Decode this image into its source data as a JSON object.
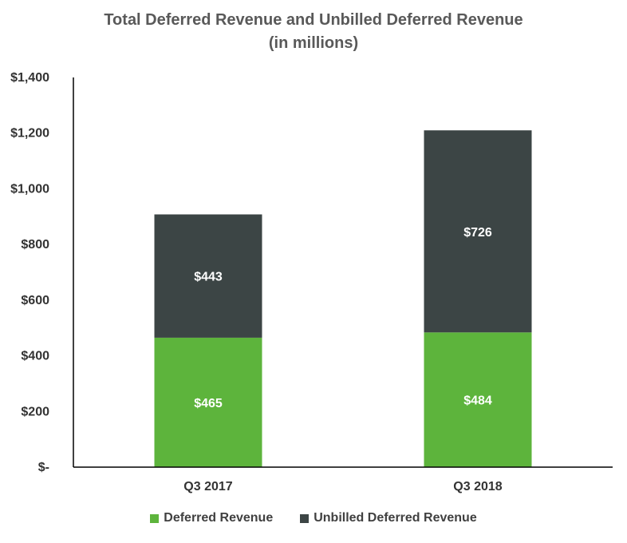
{
  "chart_data": {
    "type": "bar",
    "stacked": true,
    "title": "Total Deferred Revenue and Unbilled Deferred Revenue",
    "subtitle": "(in millions)",
    "categories": [
      "Q3 2017",
      "Q3 2018"
    ],
    "series": [
      {
        "name": "Deferred Revenue",
        "values": [
          465,
          484
        ],
        "labels": [
          "$465",
          "$484"
        ],
        "color": "#5db43c"
      },
      {
        "name": "Unbilled Deferred Revenue",
        "values": [
          443,
          726
        ],
        "labels": [
          "$443",
          "$726"
        ],
        "color": "#3c4545"
      }
    ],
    "ylim": [
      0,
      1400
    ],
    "yticks": [
      0,
      200,
      400,
      600,
      800,
      1000,
      1200,
      1400
    ],
    "ytick_labels": [
      "$-",
      "$200",
      "$400",
      "$600",
      "$800",
      "$1,000",
      "$1,200",
      "$1,400"
    ],
    "xlabel": "",
    "ylabel": "",
    "grid": false,
    "legend_position": "bottom"
  }
}
